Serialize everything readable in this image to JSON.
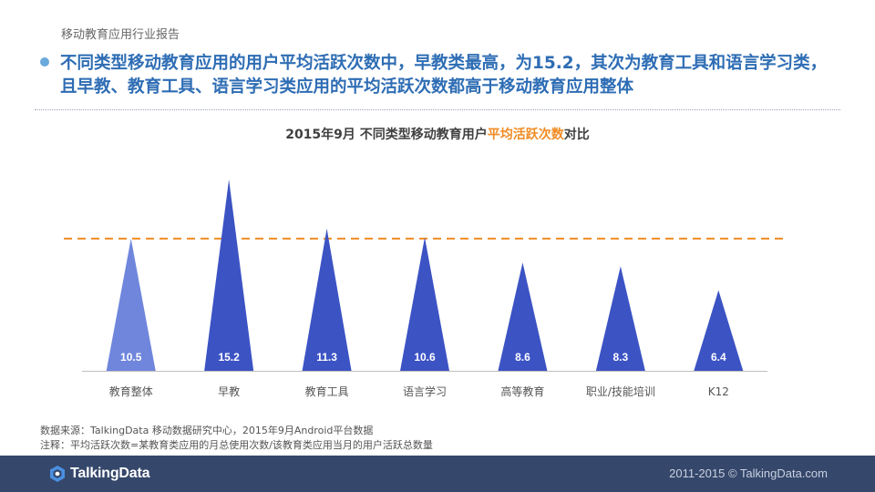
{
  "header": {
    "report_tag": "移动教育应用行业报告",
    "headline_line1": "不同类型移动教育应用的用户平均活跃次数中，早教类最高，为15.2，其次为教育工具和语言学习类，",
    "headline_line2": "且早教、教育工具、语言学习类应用的平均活跃次数都高于移动教育应用整体"
  },
  "chart_title": {
    "prefix": "2015年9月 不同类型移动教育用户",
    "highlight": "平均活跃次数",
    "suffix": "对比"
  },
  "chart_data": {
    "type": "bar",
    "title": "2015年9月 不同类型移动教育用户平均活跃次数对比",
    "categories": [
      "教育整体",
      "早教",
      "教育工具",
      "语言学习",
      "高等教育",
      "职业/技能培训",
      "K12"
    ],
    "values": [
      10.5,
      15.2,
      11.3,
      10.6,
      8.6,
      8.3,
      6.4
    ],
    "value_labels": [
      "10.5",
      "15.2",
      "11.3",
      "10.6",
      "8.6",
      "8.3",
      "6.4"
    ],
    "reference_line": 10.5,
    "ylim": [
      0,
      17
    ],
    "bar_shape": "triangle",
    "grid": false,
    "colors": {
      "overall": "#6f86dc",
      "category": "#3c53c4",
      "reference_line": "#f08c24",
      "axis": "#bfbfbf"
    }
  },
  "footnotes": {
    "source": "数据来源：TalkingData 移动数据研究中心，2015年9月Android平台数据",
    "note": "注释：平均活跃次数=某教育类应用的月总使用次数/该教育类应用当月的用户活跃总数量"
  },
  "footer": {
    "logo_text": "TalkingData",
    "copyright": "2011-2015 © TalkingData.com",
    "background": "#35476b"
  }
}
